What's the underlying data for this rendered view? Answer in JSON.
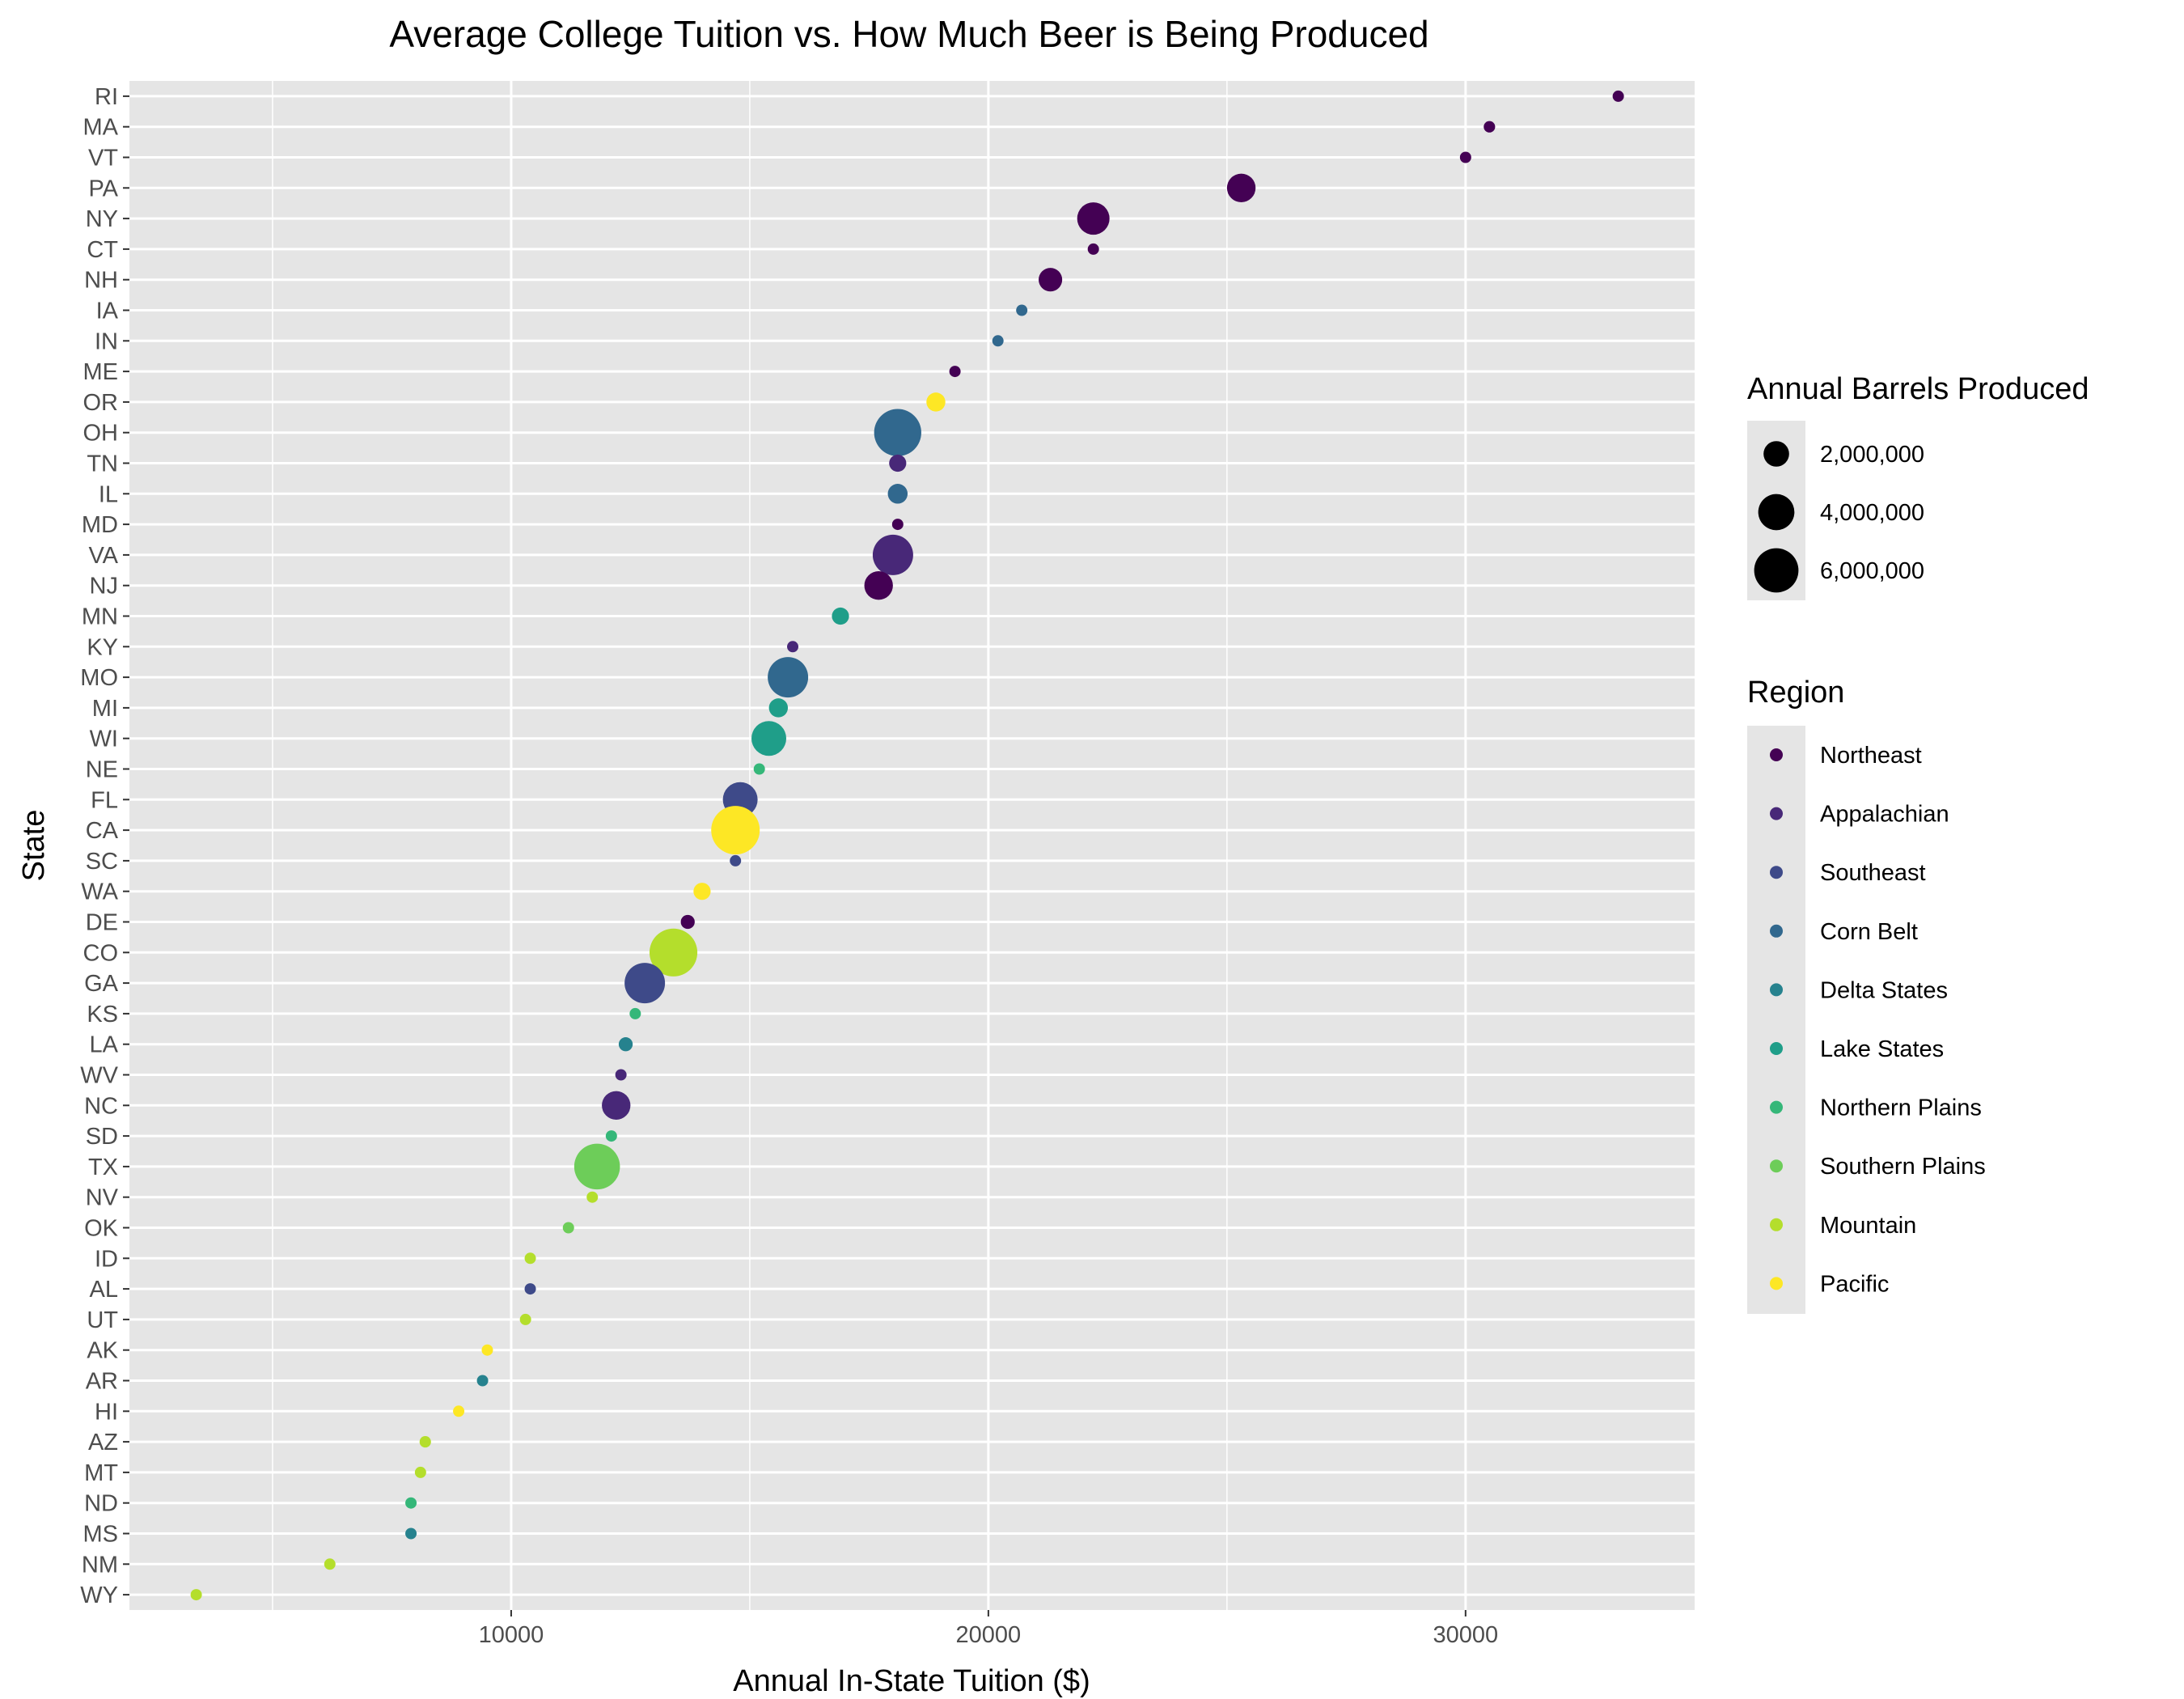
{
  "chart_data": {
    "type": "scatter",
    "title": "Average College Tuition vs. How Much Beer is Being Produced",
    "xlabel": "Annual In-State Tuition ($)",
    "ylabel": "State",
    "xlim": [
      2000,
      34800
    ],
    "x_ticks": [
      10000,
      20000,
      30000
    ],
    "x_tick_labels": [
      "10000",
      "20000",
      "30000"
    ],
    "grid": true,
    "categories": [
      "WY",
      "NM",
      "MS",
      "ND",
      "MT",
      "AZ",
      "HI",
      "AR",
      "AK",
      "UT",
      "AL",
      "ID",
      "OK",
      "NV",
      "TX",
      "SD",
      "NC",
      "WV",
      "LA",
      "KS",
      "GA",
      "CO",
      "DE",
      "WA",
      "SC",
      "CA",
      "FL",
      "NE",
      "WI",
      "MI",
      "MO",
      "KY",
      "MN",
      "NJ",
      "VA",
      "MD",
      "IL",
      "TN",
      "OH",
      "OR",
      "ME",
      "IN",
      "IA",
      "NH",
      "CT",
      "NY",
      "PA",
      "VT",
      "MA",
      "RI"
    ],
    "points": [
      {
        "state": "RI",
        "tuition": 33200,
        "barrels": 150000,
        "region": "Northeast"
      },
      {
        "state": "MA",
        "tuition": 30500,
        "barrels": 400000,
        "region": "Northeast"
      },
      {
        "state": "VT",
        "tuition": 30000,
        "barrels": 350000,
        "region": "Northeast"
      },
      {
        "state": "PA",
        "tuition": 25300,
        "barrels": 2500000,
        "region": "Northeast"
      },
      {
        "state": "NY",
        "tuition": 22200,
        "barrels": 3200000,
        "region": "Northeast"
      },
      {
        "state": "CT",
        "tuition": 22200,
        "barrels": 150000,
        "region": "Northeast"
      },
      {
        "state": "NH",
        "tuition": 21300,
        "barrels": 1700000,
        "region": "Northeast"
      },
      {
        "state": "IA",
        "tuition": 20700,
        "barrels": 150000,
        "region": "Corn Belt"
      },
      {
        "state": "IN",
        "tuition": 20200,
        "barrels": 300000,
        "region": "Corn Belt"
      },
      {
        "state": "ME",
        "tuition": 19300,
        "barrels": 300000,
        "region": "Northeast"
      },
      {
        "state": "OR",
        "tuition": 18900,
        "barrels": 1100000,
        "region": "Pacific"
      },
      {
        "state": "OH",
        "tuition": 18100,
        "barrels": 6800000,
        "region": "Corn Belt"
      },
      {
        "state": "TN",
        "tuition": 18100,
        "barrels": 900000,
        "region": "Appalachian"
      },
      {
        "state": "IL",
        "tuition": 18100,
        "barrels": 1200000,
        "region": "Corn Belt"
      },
      {
        "state": "MD",
        "tuition": 18100,
        "barrels": 300000,
        "region": "Northeast"
      },
      {
        "state": "VA",
        "tuition": 18000,
        "barrels": 5000000,
        "region": "Appalachian"
      },
      {
        "state": "NJ",
        "tuition": 17700,
        "barrels": 2500000,
        "region": "Northeast"
      },
      {
        "state": "MN",
        "tuition": 16900,
        "barrels": 900000,
        "region": "Lake States"
      },
      {
        "state": "KY",
        "tuition": 15900,
        "barrels": 300000,
        "region": "Appalachian"
      },
      {
        "state": "MO",
        "tuition": 15800,
        "barrels": 5000000,
        "region": "Corn Belt"
      },
      {
        "state": "MI",
        "tuition": 15600,
        "barrels": 1100000,
        "region": "Lake States"
      },
      {
        "state": "WI",
        "tuition": 15400,
        "barrels": 3700000,
        "region": "Lake States"
      },
      {
        "state": "NE",
        "tuition": 15200,
        "barrels": 200000,
        "region": "Northern Plains"
      },
      {
        "state": "FL",
        "tuition": 14800,
        "barrels": 3700000,
        "region": "Southeast"
      },
      {
        "state": "CA",
        "tuition": 14700,
        "barrels": 7200000,
        "region": "Pacific"
      },
      {
        "state": "SC",
        "tuition": 14700,
        "barrels": 250000,
        "region": "Southeast"
      },
      {
        "state": "WA",
        "tuition": 14000,
        "barrels": 900000,
        "region": "Pacific"
      },
      {
        "state": "DE",
        "tuition": 13700,
        "barrels": 600000,
        "region": "Northeast"
      },
      {
        "state": "CO",
        "tuition": 13400,
        "barrels": 7000000,
        "region": "Mountain"
      },
      {
        "state": "GA",
        "tuition": 12800,
        "barrels": 5000000,
        "region": "Southeast"
      },
      {
        "state": "KS",
        "tuition": 12600,
        "barrels": 250000,
        "region": "Northern Plains"
      },
      {
        "state": "LA",
        "tuition": 12400,
        "barrels": 600000,
        "region": "Delta States"
      },
      {
        "state": "WV",
        "tuition": 12300,
        "barrels": 100000,
        "region": "Appalachian"
      },
      {
        "state": "NC",
        "tuition": 12200,
        "barrels": 2500000,
        "region": "Appalachian"
      },
      {
        "state": "SD",
        "tuition": 12100,
        "barrels": 100000,
        "region": "Northern Plains"
      },
      {
        "state": "TX",
        "tuition": 11800,
        "barrels": 6400000,
        "region": "Southern Plains"
      },
      {
        "state": "NV",
        "tuition": 11700,
        "barrels": 250000,
        "region": "Mountain"
      },
      {
        "state": "OK",
        "tuition": 11200,
        "barrels": 200000,
        "region": "Southern Plains"
      },
      {
        "state": "ID",
        "tuition": 10400,
        "barrels": 200000,
        "region": "Mountain"
      },
      {
        "state": "AL",
        "tuition": 10400,
        "barrels": 200000,
        "region": "Southeast"
      },
      {
        "state": "UT",
        "tuition": 10300,
        "barrels": 350000,
        "region": "Mountain"
      },
      {
        "state": "AK",
        "tuition": 9500,
        "barrels": 350000,
        "region": "Pacific"
      },
      {
        "state": "AR",
        "tuition": 9400,
        "barrels": 100000,
        "region": "Delta States"
      },
      {
        "state": "HI",
        "tuition": 8900,
        "barrels": 200000,
        "region": "Pacific"
      },
      {
        "state": "AZ",
        "tuition": 8200,
        "barrels": 400000,
        "region": "Mountain"
      },
      {
        "state": "MT",
        "tuition": 8100,
        "barrels": 300000,
        "region": "Mountain"
      },
      {
        "state": "ND",
        "tuition": 7900,
        "barrels": 50000,
        "region": "Northern Plains"
      },
      {
        "state": "MS",
        "tuition": 7900,
        "barrels": 100000,
        "region": "Delta States"
      },
      {
        "state": "NM",
        "tuition": 6200,
        "barrels": 350000,
        "region": "Mountain"
      },
      {
        "state": "WY",
        "tuition": 3400,
        "barrels": 150000,
        "region": "Mountain"
      }
    ],
    "size_legend": {
      "title": "Annual Barrels Produced",
      "values": [
        2000000,
        4000000,
        6000000
      ],
      "labels": [
        "2,000,000",
        "4,000,000",
        "6,000,000"
      ]
    },
    "color_legend": {
      "title": "Region",
      "entries": [
        {
          "name": "Northeast",
          "color": "#440154"
        },
        {
          "name": "Appalachian",
          "color": "#482878"
        },
        {
          "name": "Southeast",
          "color": "#3E4A89"
        },
        {
          "name": "Corn Belt",
          "color": "#31688E"
        },
        {
          "name": "Delta States",
          "color": "#26828E"
        },
        {
          "name": "Lake States",
          "color": "#1F9E89"
        },
        {
          "name": "Northern Plains",
          "color": "#35B779"
        },
        {
          "name": "Southern Plains",
          "color": "#6DCD59"
        },
        {
          "name": "Mountain",
          "color": "#B4DE2C"
        },
        {
          "name": "Pacific",
          "color": "#FDE725"
        }
      ]
    },
    "legend_placement": "right"
  },
  "colors": {
    "panel_background": "#e5e5e5",
    "grid_line": "#ffffff",
    "tick_text": "#4d4d4d"
  }
}
